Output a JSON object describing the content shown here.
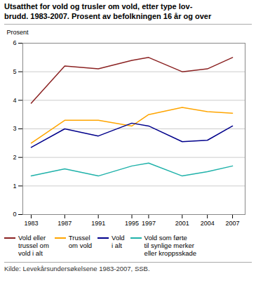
{
  "chart_data": {
    "type": "line",
    "title": "Utsatthet for vold og trusler om vold, etter type lov-\nbrudd. 1983-2007. Prosent av befolkningen 16 år og over",
    "y_label": "Prosent",
    "source": "Kilde: Levekårsundersøkelsene 1983-2007, SSB.",
    "x": [
      1983,
      1987,
      1991,
      1995,
      1997,
      2001,
      2004,
      2007
    ],
    "series": [
      {
        "name": "Vold eller\ntrussel om\nvold i alt",
        "color": "#8B2222",
        "values": [
          3.9,
          5.2,
          5.1,
          5.4,
          5.5,
          5.0,
          5.1,
          5.5
        ]
      },
      {
        "name": "Trussel\nom vold",
        "color": "#FFA500",
        "values": [
          2.5,
          3.3,
          3.3,
          3.1,
          3.5,
          3.75,
          3.6,
          3.55
        ]
      },
      {
        "name": "Vold\ni alt",
        "color": "#00008B",
        "values": [
          2.35,
          3.0,
          2.75,
          3.2,
          3.1,
          2.55,
          2.6,
          3.1
        ]
      },
      {
        "name": "Vold som førte\ntil synlige merker\neller kroppsskade",
        "color": "#20B2AA",
        "values": [
          1.35,
          1.6,
          1.35,
          1.7,
          1.8,
          1.35,
          1.5,
          1.7
        ]
      }
    ],
    "xlim": [
      1982,
      2008.5
    ],
    "ylim": [
      0,
      6
    ],
    "xticks": [
      1983,
      1987,
      1991,
      1995,
      1997,
      2001,
      2004,
      2007
    ],
    "yticks": [
      0,
      1,
      2,
      3,
      4,
      5,
      6
    ],
    "grid": true,
    "legend": "bottom"
  }
}
